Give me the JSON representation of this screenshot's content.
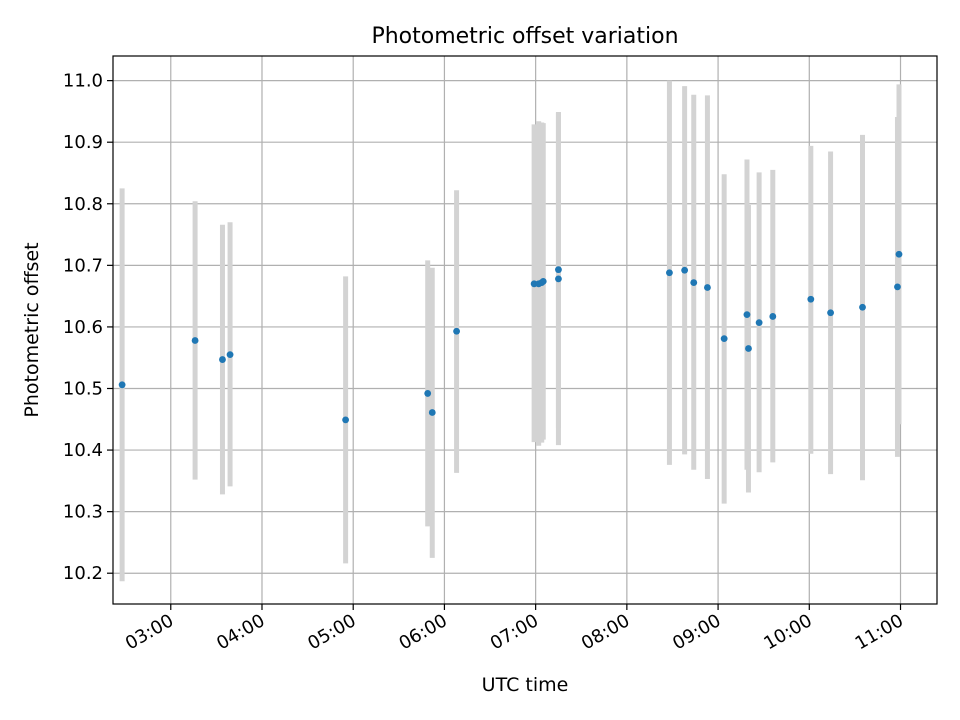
{
  "chart_data": {
    "type": "scatter",
    "title": "Photometric offset variation",
    "xlabel": "UTC time",
    "ylabel": "Photometric offset",
    "grid": true,
    "colors": {
      "point": "#1f77b4",
      "errorbar": "#d3d3d3",
      "grid": "#b0b0b0"
    },
    "xlim": [
      "02:22",
      "11:24"
    ],
    "ylim": [
      10.15,
      11.04
    ],
    "x_ticks": [
      "03:00",
      "04:00",
      "05:00",
      "06:00",
      "07:00",
      "08:00",
      "09:00",
      "10:00",
      "11:00"
    ],
    "y_ticks": [
      "10.2",
      "10.3",
      "10.4",
      "10.5",
      "10.6",
      "10.7",
      "10.8",
      "10.9",
      "11.0"
    ],
    "points": [
      {
        "x": "02:28",
        "y": 10.506,
        "ylow": 10.187,
        "yhigh": 10.825
      },
      {
        "x": "03:16",
        "y": 10.578,
        "ylow": 10.352,
        "yhigh": 10.804
      },
      {
        "x": "03:34",
        "y": 10.547,
        "ylow": 10.328,
        "yhigh": 10.766
      },
      {
        "x": "03:39",
        "y": 10.555,
        "ylow": 10.341,
        "yhigh": 10.77
      },
      {
        "x": "04:55",
        "y": 10.449,
        "ylow": 10.216,
        "yhigh": 10.682
      },
      {
        "x": "05:49",
        "y": 10.492,
        "ylow": 10.276,
        "yhigh": 10.708
      },
      {
        "x": "05:52",
        "y": 10.461,
        "ylow": 10.225,
        "yhigh": 10.696
      },
      {
        "x": "06:08",
        "y": 10.593,
        "ylow": 10.363,
        "yhigh": 10.822
      },
      {
        "x": "06:59",
        "y": 10.67,
        "ylow": 10.413,
        "yhigh": 10.929
      },
      {
        "x": "07:02",
        "y": 10.67,
        "ylow": 10.407,
        "yhigh": 10.934
      },
      {
        "x": "07:04",
        "y": 10.672,
        "ylow": 10.412,
        "yhigh": 10.932
      },
      {
        "x": "07:05",
        "y": 10.674,
        "ylow": 10.417,
        "yhigh": 10.931
      },
      {
        "x": "07:15",
        "y": 10.693,
        "ylow": 10.436,
        "yhigh": 10.949
      },
      {
        "x": "07:15",
        "y": 10.678,
        "ylow": 10.408,
        "yhigh": 10.948
      },
      {
        "x": "08:28",
        "y": 10.688,
        "ylow": 10.376,
        "yhigh": 11.0
      },
      {
        "x": "08:38",
        "y": 10.692,
        "ylow": 10.393,
        "yhigh": 10.991
      },
      {
        "x": "08:44",
        "y": 10.672,
        "ylow": 10.368,
        "yhigh": 10.977
      },
      {
        "x": "08:53",
        "y": 10.664,
        "ylow": 10.353,
        "yhigh": 10.976
      },
      {
        "x": "09:04",
        "y": 10.581,
        "ylow": 10.313,
        "yhigh": 10.848
      },
      {
        "x": "09:19",
        "y": 10.62,
        "ylow": 10.368,
        "yhigh": 10.872
      },
      {
        "x": "09:20",
        "y": 10.565,
        "ylow": 10.331,
        "yhigh": 10.798
      },
      {
        "x": "09:27",
        "y": 10.607,
        "ylow": 10.364,
        "yhigh": 10.851
      },
      {
        "x": "09:36",
        "y": 10.617,
        "ylow": 10.38,
        "yhigh": 10.855
      },
      {
        "x": "10:01",
        "y": 10.645,
        "ylow": 10.394,
        "yhigh": 10.894
      },
      {
        "x": "10:14",
        "y": 10.623,
        "ylow": 10.361,
        "yhigh": 10.885
      },
      {
        "x": "10:35",
        "y": 10.632,
        "ylow": 10.351,
        "yhigh": 10.912
      },
      {
        "x": "10:58",
        "y": 10.665,
        "ylow": 10.389,
        "yhigh": 10.941
      },
      {
        "x": "10:59",
        "y": 10.718,
        "ylow": 10.442,
        "yhigh": 10.994
      }
    ]
  }
}
